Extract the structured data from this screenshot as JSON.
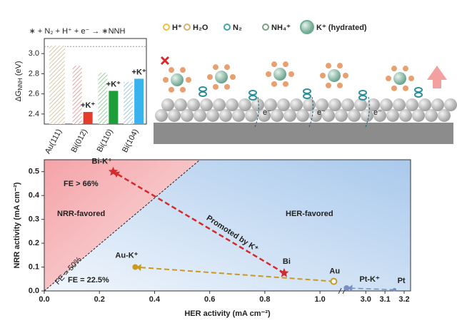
{
  "chart_data": [
    {
      "type": "bar",
      "title": "∗ + N₂ + H⁺ + e⁻ → ∗NNH",
      "ylabel": "ΔG",
      "ylabel_sub": "NNH",
      "ylabel_unit": "(eV)",
      "categories": [
        "Au(111)",
        "Bi(012)",
        "Bi(110)",
        "Bi(104)"
      ],
      "series": [
        {
          "colors": [
            "#d8c9a8",
            "#e2a6a6",
            "#9fd0a6",
            "#9ccbe6"
          ],
          "hatched": true,
          "values": [
            3.08,
            2.88,
            2.81,
            2.72
          ]
        },
        {
          "colors": [
            null,
            "#e53b2c",
            "#1e9e3a",
            "#39b3ef"
          ],
          "hatched": false,
          "values": [
            null,
            2.42,
            2.63,
            2.75
          ]
        }
      ],
      "annotations": [
        "+K⁺",
        "+K⁺",
        "+K⁺"
      ],
      "reference_line": 3.07,
      "ylim": [
        2.3,
        3.15
      ],
      "yticks": [
        2.4,
        2.6,
        2.8,
        {
          "value": 3.0,
          "label": "3.0"
        }
      ]
    },
    {
      "type": "scatter",
      "xlabel": "HER activity (mA cm⁻²)",
      "ylabel": "NRR activity (mA cm⁻²)",
      "xlim": [
        0,
        3.2
      ],
      "x_break": [
        1.08,
        2.88
      ],
      "xticks": [
        {
          "value": 0,
          "label": "0.0"
        },
        0.2,
        0.4,
        0.6,
        0.8,
        {
          "value": 1.0,
          "label": "1.0"
        },
        {
          "value": 3.0,
          "label": "3.0"
        },
        3.1,
        3.2
      ],
      "ylim": [
        0,
        0.55
      ],
      "yticks": [
        {
          "value": 0,
          "label": "0.0"
        },
        0.1,
        0.2,
        0.3,
        0.4,
        0.5
      ],
      "series": [
        {
          "name": "Bi-K⁺",
          "color": "#d42a2a",
          "marker": "star",
          "x": [
            0.25
          ],
          "values": [
            0.5
          ]
        },
        {
          "name": "Bi",
          "color": "#d42a2a",
          "marker": "star",
          "x": [
            0.87
          ],
          "values": [
            0.075
          ]
        },
        {
          "name": "Au-K⁺",
          "color": "#c99a1e",
          "marker": "dot",
          "x": [
            0.33
          ],
          "values": [
            0.1
          ]
        },
        {
          "name": "Au",
          "color": "#c99a1e",
          "marker": "ring",
          "x": [
            1.05
          ],
          "values": [
            0.04
          ]
        },
        {
          "name": "Pt-K⁺",
          "color": "#7b8fbf",
          "marker": "dot",
          "x": [
            2.9
          ],
          "values": [
            0.012
          ]
        },
        {
          "name": "Pt",
          "color": "#7b8fbf",
          "marker": "dot",
          "x": [
            3.15
          ],
          "values": [
            0.005
          ]
        }
      ],
      "fe_line": {
        "label": "FE = 50%",
        "x": [
          0,
          0.565
        ],
        "values": [
          0,
          0.55
        ]
      },
      "annotations": [
        "FE > 66%",
        "FE = 22.5%",
        "NRR-favored",
        "HER-favored",
        "Promoted by K⁺"
      ]
    }
  ],
  "schematic": {
    "legend": [
      "H⁺",
      "H₂O",
      "N₂",
      "NH₄⁺",
      "K⁺ (hydrated)"
    ],
    "electron": "e⁻"
  }
}
